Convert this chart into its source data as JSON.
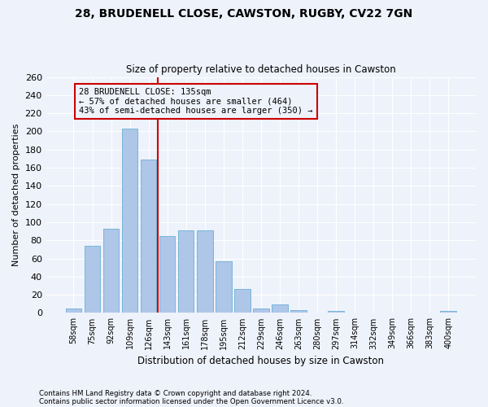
{
  "title_line1": "28, BRUDENELL CLOSE, CAWSTON, RUGBY, CV22 7GN",
  "title_line2": "Size of property relative to detached houses in Cawston",
  "xlabel": "Distribution of detached houses by size in Cawston",
  "ylabel": "Number of detached properties",
  "footnote1": "Contains HM Land Registry data © Crown copyright and database right 2024.",
  "footnote2": "Contains public sector information licensed under the Open Government Licence v3.0.",
  "bar_labels": [
    "58sqm",
    "75sqm",
    "92sqm",
    "109sqm",
    "126sqm",
    "143sqm",
    "161sqm",
    "178sqm",
    "195sqm",
    "212sqm",
    "229sqm",
    "246sqm",
    "263sqm",
    "280sqm",
    "297sqm",
    "314sqm",
    "332sqm",
    "349sqm",
    "366sqm",
    "383sqm",
    "400sqm"
  ],
  "bar_values": [
    5,
    74,
    93,
    203,
    169,
    85,
    91,
    91,
    57,
    26,
    5,
    9,
    3,
    0,
    2,
    0,
    0,
    0,
    0,
    0,
    2
  ],
  "bar_color": "#aec6e8",
  "bar_edge_color": "#6aafd6",
  "vline_x": 4.5,
  "vline_color": "#cc0000",
  "annotation_line1": "28 BRUDENELL CLOSE: 135sqm",
  "annotation_line2": "← 57% of detached houses are smaller (464)",
  "annotation_line3": "43% of semi-detached houses are larger (350) →",
  "bg_color": "#eef2fb",
  "grid_color": "#ffffff",
  "ylim": [
    0,
    260
  ],
  "yticks": [
    0,
    20,
    40,
    60,
    80,
    100,
    120,
    140,
    160,
    180,
    200,
    220,
    240,
    260
  ],
  "fig_width": 6.0,
  "fig_height": 5.0,
  "dpi": 100
}
